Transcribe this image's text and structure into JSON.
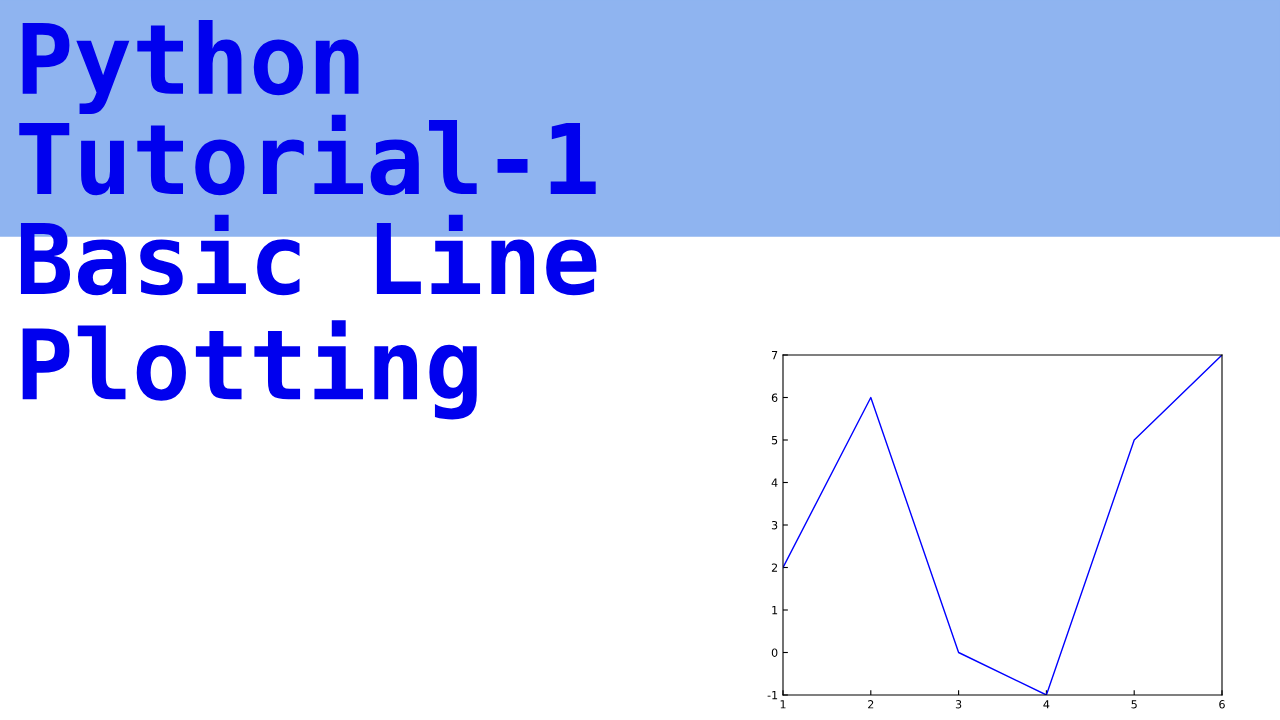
{
  "chart_data": {
    "type": "line",
    "title": "Python\nTutorial-1\nBasic Line\nPlotting",
    "x": [
      1,
      2,
      3,
      4,
      5,
      6
    ],
    "series": [
      {
        "color": "#0000ff",
        "values": [
          2,
          6,
          0,
          -1,
          5,
          7
        ]
      }
    ],
    "xlim": [
      1,
      6
    ],
    "xticks": [
      1,
      2,
      3,
      4,
      5,
      6
    ],
    "ylim": [
      -1,
      7
    ],
    "yticks": [
      -1,
      0,
      1,
      2,
      3,
      4,
      5,
      6,
      7
    ],
    "grid": false,
    "legend": false,
    "marker": "none",
    "line_style": "solid"
  }
}
